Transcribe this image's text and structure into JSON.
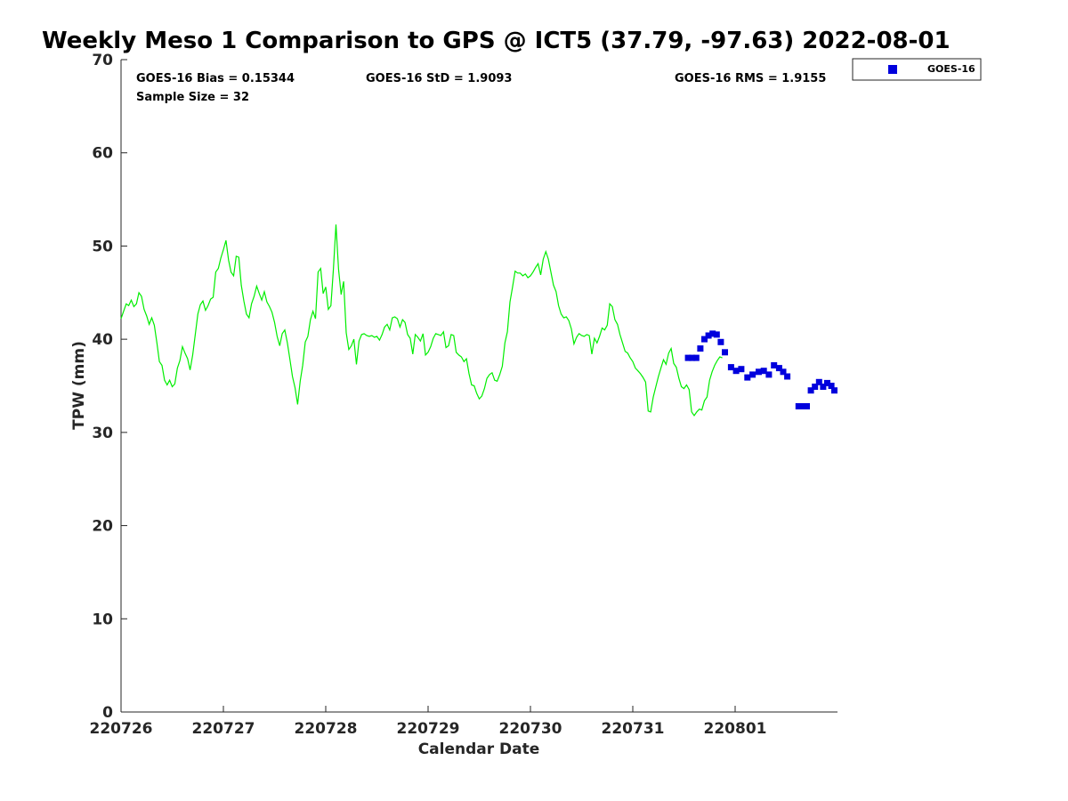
{
  "chart_data": {
    "type": "line",
    "title": "Weekly Meso 1 Comparison to GPS @ ICT5 (37.79, -97.63) 2022-08-01",
    "xlabel": "Calendar Date",
    "ylabel": "TPW (mm)",
    "xlim": [
      0,
      7
    ],
    "ylim": [
      0,
      70
    ],
    "x_ticks": [
      {
        "x": 0,
        "label": "220726"
      },
      {
        "x": 1,
        "label": "220727"
      },
      {
        "x": 2,
        "label": "220728"
      },
      {
        "x": 3,
        "label": "220729"
      },
      {
        "x": 4,
        "label": "220730"
      },
      {
        "x": 5,
        "label": "220731"
      },
      {
        "x": 6,
        "label": "220801"
      }
    ],
    "y_ticks": [
      0,
      10,
      20,
      30,
      40,
      50,
      60,
      70
    ],
    "grid": false,
    "legend": {
      "placement": "top-right-outside",
      "entries": [
        "GOES-16"
      ]
    },
    "colors": {
      "gps_line": "#00ee00",
      "goes": "#0000dd"
    },
    "stats": {
      "bias": "GOES-16 Bias = 0.15344",
      "std": "GOES-16 StD = 1.9093",
      "rms": "GOES-16 RMS = 1.9155",
      "sample": "Sample Size = 32"
    },
    "series": [
      {
        "type": "line",
        "x_step": 0.025,
        "values": [
          42.2,
          43,
          43.8,
          43.6,
          44.2,
          43.5,
          43.8,
          45,
          44.6,
          43.2,
          42.5,
          41.6,
          42.3,
          41.5,
          39.6,
          37.6,
          37.2,
          35.6,
          35.1,
          35.6,
          34.9,
          35.2,
          36.9,
          37.7,
          39.2,
          38.5,
          37.9,
          36.7,
          38.3,
          40.5,
          42.7,
          43.7,
          44.1,
          43.1,
          43.6,
          44.3,
          44.5,
          47.2,
          47.6,
          48.7,
          49.6,
          50.6,
          48.5,
          47.2,
          46.8,
          48.9,
          48.8,
          45.8,
          44.1,
          42.7,
          42.3,
          43.8,
          44.6,
          45.7,
          44.9,
          44.2,
          45.1,
          44.0,
          43.5,
          42.9,
          41.8,
          40.3,
          39.3,
          40.6,
          41.0,
          39.6,
          37.8,
          36.0,
          34.8,
          33.0,
          35.5,
          37.2,
          39.7,
          40.3,
          42.1,
          43.0,
          42.2,
          47.2,
          47.6,
          44.9,
          45.6,
          43.2,
          43.6,
          47.5,
          52.3,
          47.5,
          44.8,
          46.2,
          40.7,
          38.9,
          39.3,
          40.0,
          37.3,
          39.8,
          40.5,
          40.6,
          40.4,
          40.3,
          40.4,
          40.2,
          40.3,
          39.9,
          40.5,
          41.3,
          41.6,
          41.0,
          42.3,
          42.4,
          42.2,
          41.3,
          42.1,
          41.8,
          40.5,
          40.1,
          38.4,
          40.5,
          40.2,
          39.8,
          40.6,
          38.3,
          38.6,
          39.2,
          40.1,
          40.6,
          40.5,
          40.4,
          40.8,
          39.1,
          39.3,
          40.5,
          40.4,
          38.6,
          38.3,
          38.1,
          37.6,
          37.9,
          36.3,
          35.1,
          35.0,
          34.2,
          33.6,
          33.9,
          34.7,
          35.8,
          36.2,
          36.4,
          35.6,
          35.5,
          36.2,
          37.1,
          39.6,
          40.8,
          44.0,
          45.6,
          47.3,
          47.1,
          47.1,
          46.8,
          47.0,
          46.6,
          46.8,
          47.2,
          47.7,
          48.1,
          46.9,
          48.6,
          49.4,
          48.6,
          47.2,
          45.8,
          45.1,
          43.6,
          42.7,
          42.3,
          42.4,
          42.0,
          41.1,
          39.5,
          40.2,
          40.6,
          40.4,
          40.3,
          40.5,
          40.4,
          38.4,
          40.1,
          39.6,
          40.3,
          41.2,
          41.0,
          41.5,
          43.8,
          43.5,
          42.1,
          41.6,
          40.5,
          39.6,
          38.7,
          38.5,
          38.0,
          37.6,
          36.9,
          36.6,
          36.3,
          35.9,
          35.4,
          32.3,
          32.2,
          33.8,
          34.9,
          36.0,
          36.9,
          37.8,
          37.3,
          38.5,
          39.0,
          37.4,
          37.0,
          35.8,
          34.9,
          34.7,
          35.1,
          34.6,
          32.2,
          31.8,
          32.2,
          32.5,
          32.4,
          33.4,
          33.8,
          35.6,
          36.5,
          37.2,
          37.7,
          38.1,
          38.0
        ]
      },
      {
        "type": "scatter",
        "name": "GOES-16",
        "x": [
          5.54,
          5.58,
          5.62,
          5.66,
          5.7,
          5.74,
          5.78,
          5.82,
          5.86,
          5.9,
          5.96,
          6.01,
          6.06,
          6.12,
          6.17,
          6.23,
          6.28,
          6.33,
          6.38,
          6.43,
          6.47,
          6.51,
          6.62,
          6.66,
          6.7,
          6.74,
          6.78,
          6.82,
          6.86,
          6.9,
          6.94,
          6.97
        ],
        "y": [
          38.0,
          38.0,
          38.0,
          39.0,
          40.0,
          40.4,
          40.6,
          40.5,
          39.7,
          38.6,
          37.0,
          36.6,
          36.8,
          35.9,
          36.2,
          36.5,
          36.6,
          36.2,
          37.2,
          36.9,
          36.5,
          36.0,
          32.8,
          32.8,
          32.8,
          34.5,
          34.9,
          35.4,
          34.9,
          35.3,
          35.0,
          34.5
        ]
      }
    ]
  }
}
